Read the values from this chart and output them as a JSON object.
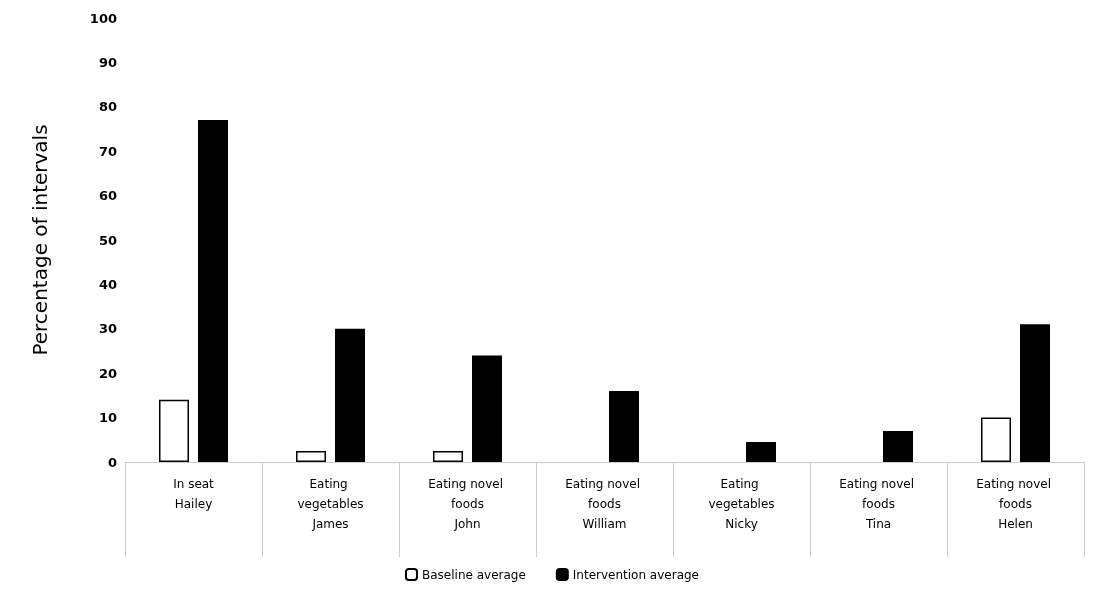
{
  "chart_data": {
    "type": "bar",
    "ylabel": "Percentage of intervals",
    "categories": [
      "In seat\nHailey",
      "Eating vegetables\nJames",
      "Eating novel foods\nJohn",
      "Eating novel foods\nWilliam",
      "Eating vegetables\nNicky",
      "Eating novel foods\nTina",
      "Eating novel foods\nHelen"
    ],
    "series": [
      {
        "name": "Baseline average",
        "color": "#ffffff",
        "values": [
          14,
          2.5,
          2.5,
          0,
          0,
          0,
          10
        ]
      },
      {
        "name": "Intervention average",
        "color": "#000000",
        "values": [
          77,
          30,
          24,
          16,
          4.5,
          7,
          31
        ]
      }
    ],
    "ylim": [
      0,
      100
    ],
    "yticks": [
      0,
      10,
      20,
      30,
      40,
      50,
      60,
      70,
      80,
      90,
      100
    ],
    "grid": false,
    "legend": "bottom"
  }
}
